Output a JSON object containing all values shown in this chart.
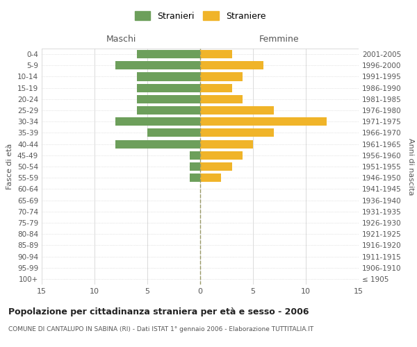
{
  "age_groups": [
    "100+",
    "95-99",
    "90-94",
    "85-89",
    "80-84",
    "75-79",
    "70-74",
    "65-69",
    "60-64",
    "55-59",
    "50-54",
    "45-49",
    "40-44",
    "35-39",
    "30-34",
    "25-29",
    "20-24",
    "15-19",
    "10-14",
    "5-9",
    "0-4"
  ],
  "birth_years": [
    "≤ 1905",
    "1906-1910",
    "1911-1915",
    "1916-1920",
    "1921-1925",
    "1926-1930",
    "1931-1935",
    "1936-1940",
    "1941-1945",
    "1946-1950",
    "1951-1955",
    "1956-1960",
    "1961-1965",
    "1966-1970",
    "1971-1975",
    "1976-1980",
    "1981-1985",
    "1986-1990",
    "1991-1995",
    "1996-2000",
    "2001-2005"
  ],
  "males": [
    0,
    0,
    0,
    0,
    0,
    0,
    0,
    0,
    0,
    1,
    1,
    1,
    8,
    5,
    8,
    6,
    6,
    6,
    6,
    8,
    6
  ],
  "females": [
    0,
    0,
    0,
    0,
    0,
    0,
    0,
    0,
    0,
    2,
    3,
    4,
    5,
    7,
    12,
    7,
    4,
    3,
    4,
    6,
    3
  ],
  "male_color": "#6d9f5b",
  "female_color": "#f0b429",
  "grid_color": "#cccccc",
  "center_line_color": "#999966",
  "title": "Popolazione per cittadinanza straniera per età e sesso - 2006",
  "subtitle": "COMUNE DI CANTALUPO IN SABINA (RI) - Dati ISTAT 1° gennaio 2006 - Elaborazione TUTTITALIA.IT",
  "xlabel_left": "Maschi",
  "xlabel_right": "Femmine",
  "ylabel_left": "Fasce di età",
  "ylabel_right": "Anni di nascita",
  "xlim": 15,
  "legend_stranieri": "Stranieri",
  "legend_straniere": "Straniere",
  "bg_color": "#ffffff",
  "label_color": "#555555"
}
